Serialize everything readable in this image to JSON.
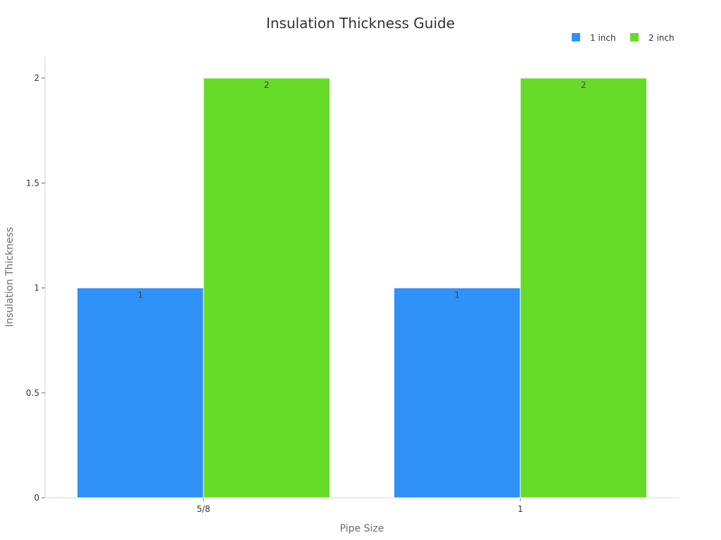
{
  "chart_data": {
    "type": "bar",
    "title": "Insulation Thickness Guide",
    "xlabel": "Pipe Size",
    "ylabel": "Insulation Thickness",
    "categories": [
      "5/8",
      "1"
    ],
    "series": [
      {
        "name": "1 inch",
        "values": [
          1,
          1
        ],
        "color": "#3092f8"
      },
      {
        "name": "2 inch",
        "values": [
          2,
          2
        ],
        "color": "#66dc28"
      }
    ],
    "ylim": [
      0,
      2
    ],
    "yticks": [
      0,
      0.5,
      1,
      1.5,
      2
    ],
    "ytick_labels": [
      "0",
      "0.5",
      "1",
      "1.5",
      "2"
    ],
    "grid": false,
    "legend": "top-right",
    "data_labels": true
  }
}
